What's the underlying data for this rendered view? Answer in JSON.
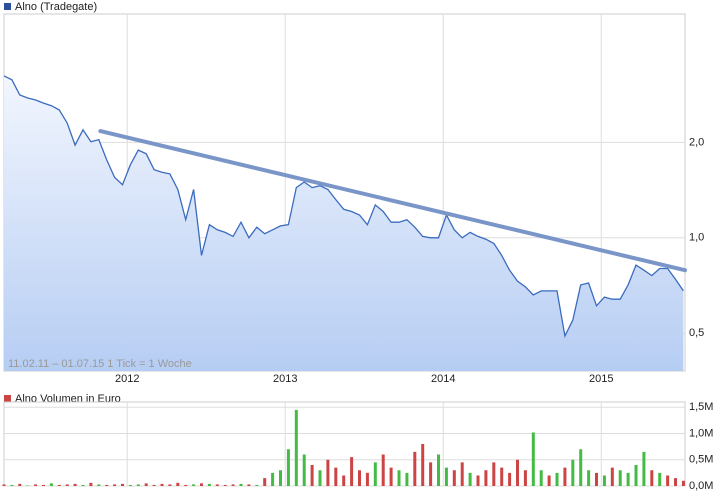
{
  "chart_data": [
    {
      "type": "area",
      "title": "Alno (Tradegate)",
      "color": "#3a6bbf",
      "log_y": true,
      "grid": true,
      "annotation": "11.02.11 – 01.07.15   1 Tick = 1 Woche",
      "x": [
        2011.22,
        2011.27,
        2011.32,
        2011.37,
        2011.42,
        2011.47,
        2011.52,
        2011.57,
        2011.62,
        2011.67,
        2011.72,
        2011.77,
        2011.82,
        2011.87,
        2011.92,
        2011.97,
        2012.02,
        2012.07,
        2012.12,
        2012.17,
        2012.22,
        2012.27,
        2012.32,
        2012.37,
        2012.42,
        2012.47,
        2012.52,
        2012.57,
        2012.62,
        2012.67,
        2012.72,
        2012.77,
        2012.82,
        2012.87,
        2012.92,
        2012.97,
        2013.02,
        2013.07,
        2013.12,
        2013.17,
        2013.22,
        2013.27,
        2013.32,
        2013.37,
        2013.42,
        2013.47,
        2013.52,
        2013.57,
        2013.62,
        2013.67,
        2013.72,
        2013.77,
        2013.82,
        2013.87,
        2013.92,
        2013.97,
        2014.02,
        2014.07,
        2014.12,
        2014.17,
        2014.22,
        2014.27,
        2014.32,
        2014.37,
        2014.42,
        2014.47,
        2014.52,
        2014.57,
        2014.62,
        2014.67,
        2014.72,
        2014.77,
        2014.82,
        2014.87,
        2014.92,
        2014.97,
        2015.02,
        2015.07,
        2015.12,
        2015.17,
        2015.22,
        2015.27,
        2015.32,
        2015.37,
        2015.42,
        2015.47,
        2015.52
      ],
      "values": [
        3.24,
        3.15,
        2.82,
        2.76,
        2.72,
        2.66,
        2.61,
        2.53,
        2.3,
        1.96,
        2.19,
        2.01,
        2.04,
        1.76,
        1.55,
        1.47,
        1.7,
        1.89,
        1.84,
        1.64,
        1.61,
        1.59,
        1.42,
        1.14,
        1.42,
        0.88,
        1.1,
        1.06,
        1.04,
        1.01,
        1.12,
        1.0,
        1.08,
        1.03,
        1.06,
        1.09,
        1.1,
        1.44,
        1.5,
        1.44,
        1.46,
        1.42,
        1.32,
        1.23,
        1.21,
        1.18,
        1.1,
        1.27,
        1.21,
        1.12,
        1.12,
        1.14,
        1.08,
        1.01,
        1.0,
        1.0,
        1.18,
        1.06,
        1.0,
        1.04,
        1.01,
        0.99,
        0.96,
        0.88,
        0.79,
        0.73,
        0.7,
        0.66,
        0.68,
        0.68,
        0.68,
        0.49,
        0.55,
        0.71,
        0.72,
        0.61,
        0.65,
        0.64,
        0.64,
        0.71,
        0.82,
        0.79,
        0.76,
        0.8,
        0.8,
        0.74,
        0.68
      ],
      "trendline": {
        "x": [
          2011.83,
          2015.53
        ],
        "values": [
          2.17,
          0.79
        ],
        "color": "#7a96c8"
      },
      "xlim": [
        2011.22,
        2015.53
      ],
      "xticks": [
        2012,
        2013,
        2014,
        2015
      ],
      "ylim": [
        0.38,
        5.08
      ],
      "yticks": [
        {
          "value": 0.5,
          "label": "0,5"
        },
        {
          "value": 1,
          "label": "1,0"
        },
        {
          "value": 2,
          "label": "2,0"
        }
      ]
    },
    {
      "type": "bar",
      "title": "Alno Volumen in Euro",
      "color": "#cc4444",
      "grid": true,
      "x": [
        2011.22,
        2011.27,
        2011.32,
        2011.37,
        2011.42,
        2011.47,
        2011.52,
        2011.57,
        2011.62,
        2011.67,
        2011.72,
        2011.77,
        2011.82,
        2011.87,
        2011.92,
        2011.97,
        2012.02,
        2012.07,
        2012.12,
        2012.17,
        2012.22,
        2012.27,
        2012.32,
        2012.37,
        2012.42,
        2012.47,
        2012.52,
        2012.57,
        2012.62,
        2012.67,
        2012.72,
        2012.77,
        2012.82,
        2012.87,
        2012.92,
        2012.97,
        2013.02,
        2013.07,
        2013.12,
        2013.17,
        2013.22,
        2013.27,
        2013.32,
        2013.37,
        2013.42,
        2013.47,
        2013.52,
        2013.57,
        2013.62,
        2013.67,
        2013.72,
        2013.77,
        2013.82,
        2013.87,
        2013.92,
        2013.97,
        2014.02,
        2014.07,
        2014.12,
        2014.17,
        2014.22,
        2014.27,
        2014.32,
        2014.37,
        2014.42,
        2014.47,
        2014.52,
        2014.57,
        2014.62,
        2014.67,
        2014.72,
        2014.77,
        2014.82,
        2014.87,
        2014.92,
        2014.97,
        2015.02,
        2015.07,
        2015.12,
        2015.17,
        2015.22,
        2015.27,
        2015.32,
        2015.37,
        2015.42,
        2015.47,
        2015.52
      ],
      "values": [
        30000,
        20000,
        40000,
        10000,
        30000,
        20000,
        50000,
        20000,
        30000,
        40000,
        20000,
        60000,
        30000,
        20000,
        30000,
        40000,
        20000,
        30000,
        50000,
        20000,
        40000,
        30000,
        60000,
        20000,
        30000,
        50000,
        40000,
        30000,
        20000,
        30000,
        40000,
        30000,
        20000,
        150000,
        250000,
        300000,
        700000,
        1450000,
        600000,
        400000,
        300000,
        500000,
        350000,
        200000,
        550000,
        300000,
        250000,
        450000,
        600000,
        350000,
        300000,
        250000,
        650000,
        800000,
        450000,
        600000,
        350000,
        300000,
        450000,
        250000,
        200000,
        300000,
        450000,
        350000,
        250000,
        500000,
        300000,
        1020000,
        300000,
        200000,
        250000,
        350000,
        500000,
        700000,
        300000,
        250000,
        200000,
        350000,
        300000,
        250000,
        400000,
        650000,
        300000,
        250000,
        200000,
        150000,
        100000
      ],
      "colors": [
        "#cc4444",
        "#44bb44",
        "#cc4444",
        "#44bb44",
        "#cc4444",
        "#cc4444",
        "#44bb44",
        "#cc4444",
        "#cc4444",
        "#cc4444",
        "#44bb44",
        "#cc4444",
        "#44bb44",
        "#cc4444",
        "#cc4444",
        "#cc4444",
        "#44bb44",
        "#44bb44",
        "#cc4444",
        "#cc4444",
        "#cc4444",
        "#cc4444",
        "#cc4444",
        "#cc4444",
        "#44bb44",
        "#cc4444",
        "#44bb44",
        "#cc4444",
        "#cc4444",
        "#cc4444",
        "#44bb44",
        "#cc4444",
        "#44bb44",
        "#cc4444",
        "#44bb44",
        "#44bb44",
        "#44bb44",
        "#44bb44",
        "#44bb44",
        "#cc4444",
        "#44bb44",
        "#cc4444",
        "#cc4444",
        "#cc4444",
        "#cc4444",
        "#cc4444",
        "#cc4444",
        "#44bb44",
        "#cc4444",
        "#cc4444",
        "#44bb44",
        "#44bb44",
        "#cc4444",
        "#cc4444",
        "#cc4444",
        "#44bb44",
        "#44bb44",
        "#cc4444",
        "#cc4444",
        "#44bb44",
        "#cc4444",
        "#cc4444",
        "#cc4444",
        "#cc4444",
        "#cc4444",
        "#cc4444",
        "#cc4444",
        "#44bb44",
        "#44bb44",
        "#cc4444",
        "#44bb44",
        "#cc4444",
        "#44bb44",
        "#44bb44",
        "#44bb44",
        "#cc4444",
        "#44bb44",
        "#cc4444",
        "#44bb44",
        "#44bb44",
        "#44bb44",
        "#44bb44",
        "#cc4444",
        "#44bb44",
        "#cc4444",
        "#cc4444",
        "#cc4444"
      ],
      "xlim": [
        2011.22,
        2015.53
      ],
      "ylim": [
        0,
        1600000
      ],
      "yticks": [
        {
          "value": 0,
          "label": "0,0M"
        },
        {
          "value": 500000,
          "label": "0,5M"
        },
        {
          "value": 1000000,
          "label": "1,0M"
        },
        {
          "value": 1500000,
          "label": "1,5M"
        }
      ]
    }
  ]
}
